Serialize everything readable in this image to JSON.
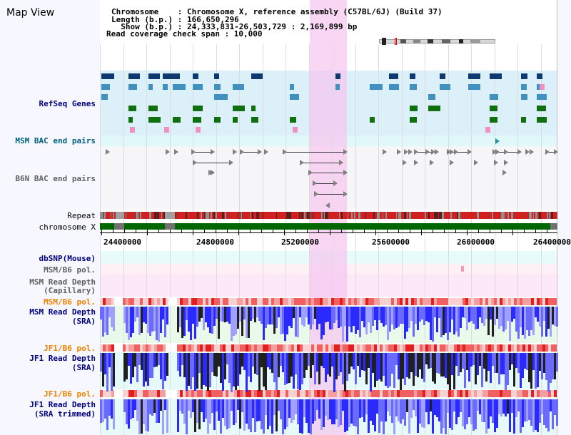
{
  "header": {
    "title": "Map View",
    "info_lines": [
      "Chromosome    : Chromosome X, reference assembly (C57BL/6J) (Build 37)",
      "Length (b.p.) : 166,650,296",
      "  Show (b.p.) : 24,333,831-26,503,729 : 2,169,899 bp",
      "Read coverage check span : 10,000"
    ]
  },
  "tracks": {
    "refseq": "RefSeq Genes",
    "msm_bac": "MSM BAC end pairs",
    "b6n_bac": "B6N BAC end pairs",
    "repeat": "Repeat",
    "chromosome": "chromosome X",
    "dbsnp": "dbSNP(Mouse)",
    "msm_pol_1": "MSM/B6 pol.",
    "msm_depth_cap_1": "MSM Read Depth",
    "msm_depth_cap_2": "(Capillary)",
    "msm_pol_2": "MSM/B6 pol.",
    "msm_depth_sra_1": "MSM Read Depth",
    "msm_depth_sra_2": "(SRA)",
    "jf1_pol_1": "JF1/B6 pol.",
    "jf1_depth_sra_1": "JF1 Read Depth",
    "jf1_depth_sra_2": "(SRA)",
    "jf1_pol_2": "JF1/B6 pol.",
    "jf1_depth_trim_1": "JF1 Read Depth",
    "jf1_depth_trim_2": "(SRA trimmed)"
  },
  "ruler": {
    "ticks": [
      "24400000",
      "24800000",
      "25200000",
      "25600000",
      "26000000",
      "26400000"
    ]
  },
  "colors": {
    "highlight": "#f5c8f0",
    "refseq_bg": "#dcf0fa",
    "msm_bac_bg": "#e0f8f8",
    "chromosome_green": "#006600",
    "repeat_red": "#d02020",
    "depth_blue": "#4040ff",
    "depth_dark": "#202020",
    "pol_red": "#f06060"
  }
}
